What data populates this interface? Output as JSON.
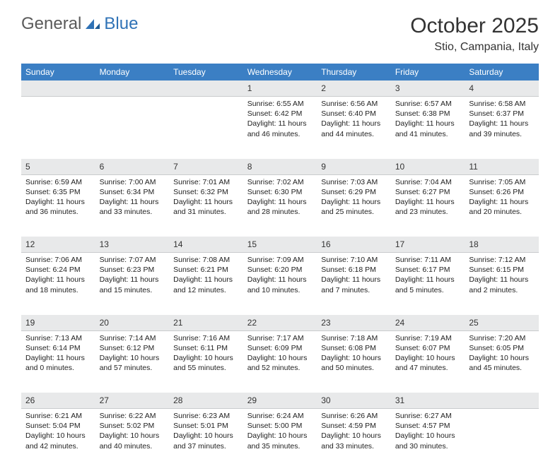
{
  "logo": {
    "text1": "General",
    "text2": "Blue"
  },
  "title": "October 2025",
  "location": "Stio, Campania, Italy",
  "colors": {
    "header_bg": "#3b7fc4",
    "header_text": "#ffffff",
    "daynum_bg": "#e8e9ea",
    "text": "#222222",
    "logo_gray": "#5a5a5a",
    "logo_blue": "#2f72b6"
  },
  "weekdays": [
    "Sunday",
    "Monday",
    "Tuesday",
    "Wednesday",
    "Thursday",
    "Friday",
    "Saturday"
  ],
  "weeks": [
    [
      null,
      null,
      null,
      {
        "n": "1",
        "sr": "6:55 AM",
        "ss": "6:42 PM",
        "dl": "11 hours and 46 minutes."
      },
      {
        "n": "2",
        "sr": "6:56 AM",
        "ss": "6:40 PM",
        "dl": "11 hours and 44 minutes."
      },
      {
        "n": "3",
        "sr": "6:57 AM",
        "ss": "6:38 PM",
        "dl": "11 hours and 41 minutes."
      },
      {
        "n": "4",
        "sr": "6:58 AM",
        "ss": "6:37 PM",
        "dl": "11 hours and 39 minutes."
      }
    ],
    [
      {
        "n": "5",
        "sr": "6:59 AM",
        "ss": "6:35 PM",
        "dl": "11 hours and 36 minutes."
      },
      {
        "n": "6",
        "sr": "7:00 AM",
        "ss": "6:34 PM",
        "dl": "11 hours and 33 minutes."
      },
      {
        "n": "7",
        "sr": "7:01 AM",
        "ss": "6:32 PM",
        "dl": "11 hours and 31 minutes."
      },
      {
        "n": "8",
        "sr": "7:02 AM",
        "ss": "6:30 PM",
        "dl": "11 hours and 28 minutes."
      },
      {
        "n": "9",
        "sr": "7:03 AM",
        "ss": "6:29 PM",
        "dl": "11 hours and 25 minutes."
      },
      {
        "n": "10",
        "sr": "7:04 AM",
        "ss": "6:27 PM",
        "dl": "11 hours and 23 minutes."
      },
      {
        "n": "11",
        "sr": "7:05 AM",
        "ss": "6:26 PM",
        "dl": "11 hours and 20 minutes."
      }
    ],
    [
      {
        "n": "12",
        "sr": "7:06 AM",
        "ss": "6:24 PM",
        "dl": "11 hours and 18 minutes."
      },
      {
        "n": "13",
        "sr": "7:07 AM",
        "ss": "6:23 PM",
        "dl": "11 hours and 15 minutes."
      },
      {
        "n": "14",
        "sr": "7:08 AM",
        "ss": "6:21 PM",
        "dl": "11 hours and 12 minutes."
      },
      {
        "n": "15",
        "sr": "7:09 AM",
        "ss": "6:20 PM",
        "dl": "11 hours and 10 minutes."
      },
      {
        "n": "16",
        "sr": "7:10 AM",
        "ss": "6:18 PM",
        "dl": "11 hours and 7 minutes."
      },
      {
        "n": "17",
        "sr": "7:11 AM",
        "ss": "6:17 PM",
        "dl": "11 hours and 5 minutes."
      },
      {
        "n": "18",
        "sr": "7:12 AM",
        "ss": "6:15 PM",
        "dl": "11 hours and 2 minutes."
      }
    ],
    [
      {
        "n": "19",
        "sr": "7:13 AM",
        "ss": "6:14 PM",
        "dl": "11 hours and 0 minutes."
      },
      {
        "n": "20",
        "sr": "7:14 AM",
        "ss": "6:12 PM",
        "dl": "10 hours and 57 minutes."
      },
      {
        "n": "21",
        "sr": "7:16 AM",
        "ss": "6:11 PM",
        "dl": "10 hours and 55 minutes."
      },
      {
        "n": "22",
        "sr": "7:17 AM",
        "ss": "6:09 PM",
        "dl": "10 hours and 52 minutes."
      },
      {
        "n": "23",
        "sr": "7:18 AM",
        "ss": "6:08 PM",
        "dl": "10 hours and 50 minutes."
      },
      {
        "n": "24",
        "sr": "7:19 AM",
        "ss": "6:07 PM",
        "dl": "10 hours and 47 minutes."
      },
      {
        "n": "25",
        "sr": "7:20 AM",
        "ss": "6:05 PM",
        "dl": "10 hours and 45 minutes."
      }
    ],
    [
      {
        "n": "26",
        "sr": "6:21 AM",
        "ss": "5:04 PM",
        "dl": "10 hours and 42 minutes."
      },
      {
        "n": "27",
        "sr": "6:22 AM",
        "ss": "5:02 PM",
        "dl": "10 hours and 40 minutes."
      },
      {
        "n": "28",
        "sr": "6:23 AM",
        "ss": "5:01 PM",
        "dl": "10 hours and 37 minutes."
      },
      {
        "n": "29",
        "sr": "6:24 AM",
        "ss": "5:00 PM",
        "dl": "10 hours and 35 minutes."
      },
      {
        "n": "30",
        "sr": "6:26 AM",
        "ss": "4:59 PM",
        "dl": "10 hours and 33 minutes."
      },
      {
        "n": "31",
        "sr": "6:27 AM",
        "ss": "4:57 PM",
        "dl": "10 hours and 30 minutes."
      },
      null
    ]
  ]
}
